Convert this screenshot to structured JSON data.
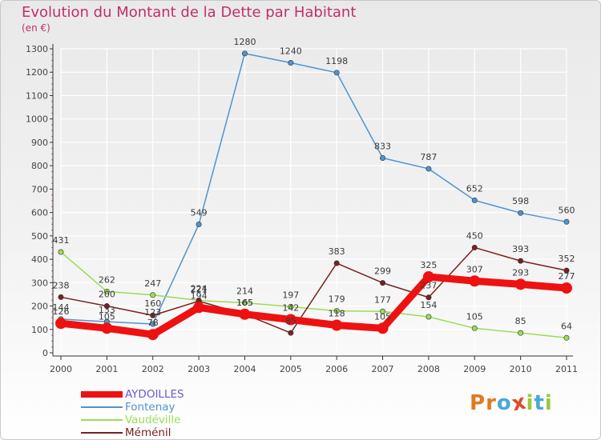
{
  "header": {
    "title": "Evolution du Montant de la Dette par Habitant",
    "subtitle": "(en €)"
  },
  "brand": {
    "logo_text": "Proxiti",
    "letter_colors": [
      "#e07a1f",
      "#e07a1f",
      "#4aa8d8",
      "#e04a2a",
      "#9bc83c",
      "#4aa8d8",
      "#9bc83c"
    ]
  },
  "colors": {
    "title": "#c0306a",
    "grid": "#ffffff",
    "axis": "#333333"
  },
  "chart_data": {
    "type": "line",
    "title": "Evolution du Montant de la Dette par Habitant",
    "ylabel": "(en €)",
    "xlabel": "",
    "grid": true,
    "legend_position": "bottom-left",
    "ylim": [
      0,
      1300
    ],
    "yticks": [
      0,
      100,
      200,
      300,
      400,
      500,
      600,
      700,
      800,
      900,
      1000,
      1100,
      1200,
      1300
    ],
    "x": [
      "2000",
      "2001",
      "2002",
      "2003",
      "2004",
      "2005",
      "2006",
      "2007",
      "2008",
      "2009",
      "2010",
      "2011"
    ],
    "series": [
      {
        "name": "AYDOILLES",
        "color": "#ee1111",
        "emphasis": true,
        "values": [
          126,
          105,
          78,
          194,
          165,
          142,
          118,
          105,
          325,
          307,
          293,
          277
        ]
      },
      {
        "name": "Fontenay",
        "color": "#4f94cd",
        "values": [
          144,
          133,
          123,
          549,
          1280,
          1240,
          1198,
          833,
          787,
          652,
          598,
          560
        ]
      },
      {
        "name": "Vaudéville",
        "color": "#99dd55",
        "values": [
          431,
          262,
          247,
          224,
          214,
          197,
          179,
          177,
          154,
          105,
          85,
          64
        ]
      },
      {
        "name": "Méménil",
        "color": "#7a2020",
        "values": [
          238,
          200,
          160,
          221,
          165,
          85,
          383,
          299,
          237,
          450,
          393,
          352
        ]
      }
    ]
  }
}
